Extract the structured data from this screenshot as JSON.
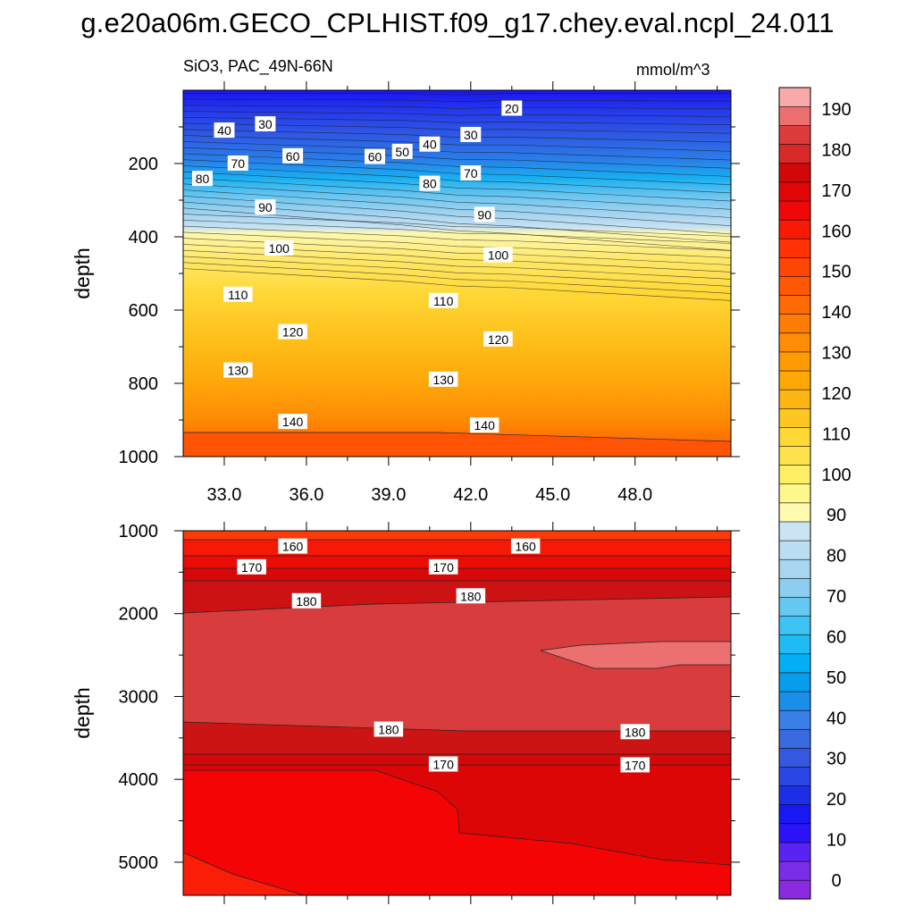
{
  "title": "g.e20a06m.GECO_CPLHIST.f09_g17.chey.eval.ncpl_24.011",
  "subtitle": "SiO3, PAC_49N-66N",
  "units": "mmol/m^3",
  "chart_data": [
    {
      "type": "contour",
      "panel": "upper",
      "ylabel": "depth",
      "ylim": [
        1000,
        0
      ],
      "xlim": [
        31.5,
        51.5
      ],
      "x_ticks": [
        "33.0",
        "36.0",
        "39.0",
        "42.0",
        "45.0",
        "48.0"
      ],
      "x_tick_values": [
        33,
        36,
        39,
        42,
        45,
        48
      ],
      "y_ticks": [
        "200",
        "400",
        "600",
        "800",
        "1000"
      ],
      "y_tick_values": [
        200,
        400,
        600,
        800,
        1000
      ],
      "contour_labels": [
        {
          "text": "20",
          "x": 43.5,
          "y": 50
        },
        {
          "text": "30",
          "x": 34.5,
          "y": 93
        },
        {
          "text": "40",
          "x": 33.0,
          "y": 110
        },
        {
          "text": "30",
          "x": 42.0,
          "y": 122
        },
        {
          "text": "40",
          "x": 40.5,
          "y": 148
        },
        {
          "text": "50",
          "x": 39.5,
          "y": 168
        },
        {
          "text": "60",
          "x": 35.5,
          "y": 180
        },
        {
          "text": "60",
          "x": 38.5,
          "y": 182
        },
        {
          "text": "70",
          "x": 33.5,
          "y": 200
        },
        {
          "text": "70",
          "x": 42.0,
          "y": 227
        },
        {
          "text": "80",
          "x": 32.2,
          "y": 242
        },
        {
          "text": "80",
          "x": 40.5,
          "y": 255
        },
        {
          "text": "90",
          "x": 34.5,
          "y": 320
        },
        {
          "text": "90",
          "x": 42.5,
          "y": 340
        },
        {
          "text": "100",
          "x": 35.0,
          "y": 432
        },
        {
          "text": "100",
          "x": 43.0,
          "y": 450
        },
        {
          "text": "110",
          "x": 33.5,
          "y": 558
        },
        {
          "text": "110",
          "x": 41.0,
          "y": 575
        },
        {
          "text": "120",
          "x": 35.5,
          "y": 660
        },
        {
          "text": "120",
          "x": 43.0,
          "y": 680
        },
        {
          "text": "130",
          "x": 33.5,
          "y": 765
        },
        {
          "text": "130",
          "x": 41.0,
          "y": 790
        },
        {
          "text": "140",
          "x": 35.5,
          "y": 905
        },
        {
          "text": "140",
          "x": 42.5,
          "y": 915
        }
      ]
    },
    {
      "type": "contour",
      "panel": "lower",
      "ylabel": "depth",
      "ylim": [
        5400,
        1000
      ],
      "xlim": [
        31.5,
        51.5
      ],
      "y_ticks": [
        "1000",
        "2000",
        "3000",
        "4000",
        "5000"
      ],
      "y_tick_values": [
        1000,
        2000,
        3000,
        4000,
        5000
      ],
      "contour_labels": [
        {
          "text": "160",
          "x": 35.5,
          "y": 1190
        },
        {
          "text": "160",
          "x": 44.0,
          "y": 1190
        },
        {
          "text": "170",
          "x": 34.0,
          "y": 1440
        },
        {
          "text": "170",
          "x": 41.0,
          "y": 1440
        },
        {
          "text": "180",
          "x": 36.0,
          "y": 1850
        },
        {
          "text": "180",
          "x": 42.0,
          "y": 1790
        },
        {
          "text": "180",
          "x": 39.0,
          "y": 3400
        },
        {
          "text": "180",
          "x": 48.0,
          "y": 3430
        },
        {
          "text": "170",
          "x": 41.0,
          "y": 3820
        },
        {
          "text": "170",
          "x": 48.0,
          "y": 3830
        }
      ]
    }
  ],
  "colorbar": {
    "labels": [
      "0",
      "10",
      "20",
      "30",
      "40",
      "50",
      "60",
      "70",
      "80",
      "90",
      "100",
      "110",
      "120",
      "130",
      "140",
      "150",
      "160",
      "170",
      "180",
      "190"
    ],
    "colors": [
      "#8a2be2",
      "#7a2de6",
      "#5b23f2",
      "#2c14fa",
      "#1818f4",
      "#1c2ee8",
      "#2a46e4",
      "#3458e0",
      "#3a6ae0",
      "#3a80e8",
      "#1a8ee8",
      "#089cec",
      "#04aef4",
      "#1ebcf4",
      "#3cc4f4",
      "#64c8f0",
      "#8ccdf0",
      "#a8d6f0",
      "#bcdef2",
      "#cce4f2",
      "#fefab0",
      "#fef88c",
      "#fef066",
      "#fee44c",
      "#fed834",
      "#fec620",
      "#feb614",
      "#fea808",
      "#fe9a04",
      "#fe8c04",
      "#fe7c04",
      "#fe6a04",
      "#fe5804",
      "#fe4604",
      "#fe3204",
      "#f81a04",
      "#f00808",
      "#e00606",
      "#d00808",
      "#d82828",
      "#dc3c3c",
      "#ec6e6e",
      "#f8aaaa"
    ]
  }
}
